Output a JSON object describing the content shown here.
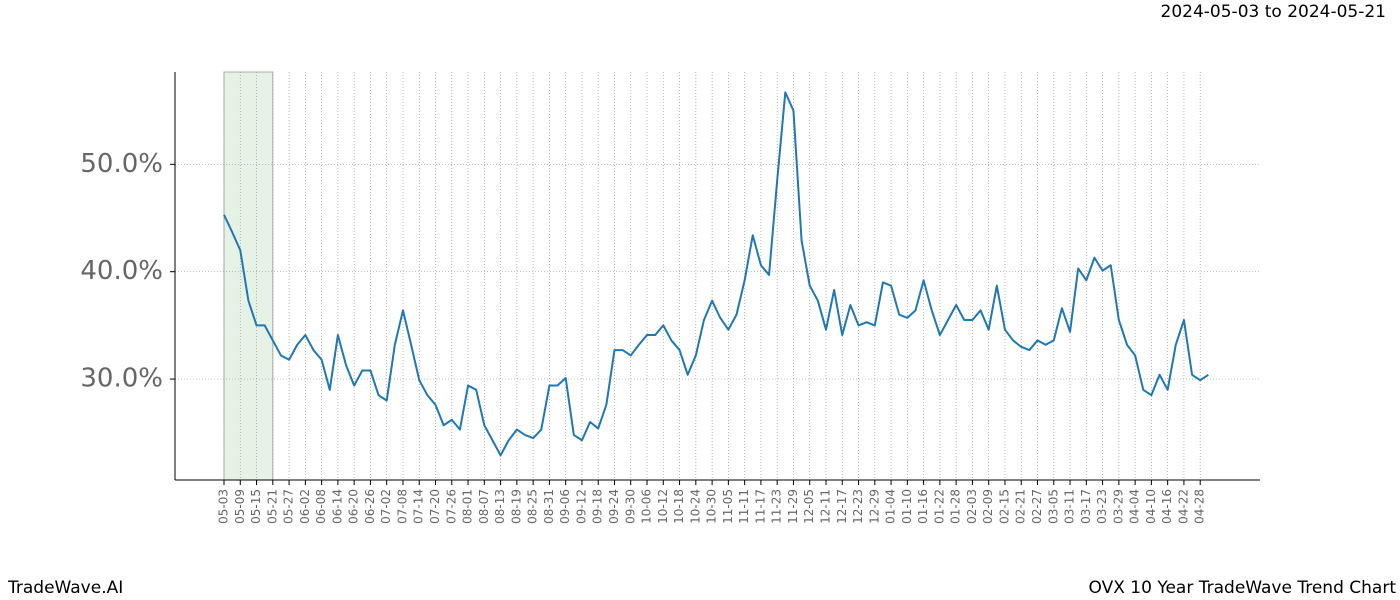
{
  "header": {
    "date_range": "2024-05-03 to 2024-05-21"
  },
  "footer": {
    "brand": "TradeWave.AI",
    "chart_name": "OVX 10 Year TradeWave Trend Chart"
  },
  "chart_data": {
    "type": "line",
    "color": "#1f77b4",
    "grid": true,
    "shade": {
      "from": "05-03",
      "to": "05-21",
      "color": "#e6f2e6"
    },
    "categories": [
      "05-03",
      null,
      "05-09",
      null,
      "05-15",
      null,
      "05-21",
      null,
      "05-27",
      null,
      "06-02",
      null,
      "06-08",
      null,
      "06-14",
      null,
      "06-20",
      null,
      "06-26",
      null,
      "07-02",
      null,
      "07-08",
      null,
      "07-14",
      null,
      "07-20",
      null,
      "07-26",
      null,
      "08-01",
      null,
      "08-07",
      null,
      "08-13",
      null,
      "08-19",
      null,
      "08-25",
      null,
      "08-31",
      null,
      "09-06",
      null,
      "09-12",
      null,
      "09-18",
      null,
      "09-24",
      null,
      "09-30",
      null,
      "10-06",
      null,
      "10-12",
      null,
      "10-18",
      null,
      "10-24",
      null,
      "10-30",
      null,
      "11-05",
      null,
      "11-11",
      null,
      "11-17",
      null,
      "11-23",
      null,
      "11-29",
      null,
      "12-05",
      null,
      "12-11",
      null,
      "12-17",
      null,
      "12-23",
      null,
      "12-29",
      null,
      "01-04",
      null,
      "01-10",
      null,
      "01-16",
      null,
      "01-22",
      null,
      "01-28",
      null,
      "02-03",
      null,
      "02-09",
      null,
      "02-15",
      null,
      "02-21",
      null,
      "02-27",
      null,
      "03-05",
      null,
      "03-11",
      null,
      "03-17",
      null,
      "03-23",
      null,
      "03-29",
      null,
      "04-04",
      null,
      "04-10",
      null,
      "04-16",
      null,
      "04-22",
      null,
      "04-28",
      null
    ],
    "values": [
      45.3,
      43.7,
      42.0,
      37.3,
      35.0,
      35.0,
      33.6,
      32.2,
      31.8,
      33.2,
      34.1,
      32.7,
      31.8,
      29.0,
      34.1,
      31.3,
      29.4,
      30.8,
      30.8,
      28.5,
      28.0,
      33.2,
      36.4,
      33.2,
      29.9,
      28.5,
      27.6,
      25.7,
      26.2,
      25.3,
      29.4,
      29.0,
      25.7,
      24.3,
      22.9,
      24.3,
      25.3,
      24.8,
      24.5,
      25.3,
      29.4,
      29.4,
      30.1,
      24.8,
      24.3,
      26.0,
      25.4,
      27.6,
      32.7,
      32.7,
      32.2,
      33.2,
      34.1,
      34.1,
      35.0,
      33.6,
      32.7,
      30.4,
      32.2,
      35.5,
      37.3,
      35.7,
      34.6,
      36.0,
      39.2,
      43.4,
      40.6,
      39.7,
      48.5,
      56.7,
      55.0,
      42.9,
      38.7,
      37.3,
      34.6,
      38.3,
      34.1,
      36.9,
      35.0,
      35.3,
      35.0,
      39.0,
      38.7,
      36.0,
      35.7,
      36.4,
      39.2,
      36.4,
      34.1,
      35.5,
      36.9,
      35.5,
      35.5,
      36.4,
      34.6,
      38.7,
      34.6,
      33.6,
      33.0,
      32.7,
      33.6,
      33.2,
      33.6,
      36.6,
      34.4,
      40.3,
      39.2,
      41.3,
      40.1,
      40.6,
      35.5,
      33.2,
      32.2,
      29.0,
      28.5,
      30.4,
      29.0,
      33.2,
      35.5,
      30.4,
      29.9,
      30.4
    ],
    "ylim": [
      20.6,
      58.6
    ],
    "yticks": [
      {
        "value": 30,
        "label": "30.0%"
      },
      {
        "value": 40,
        "label": "40.0%"
      },
      {
        "value": 50,
        "label": "50.0%"
      }
    ]
  }
}
